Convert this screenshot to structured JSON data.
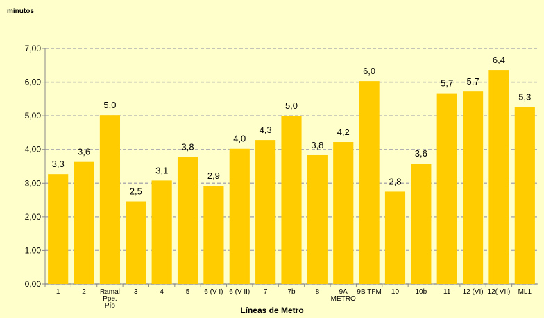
{
  "chart_data": {
    "type": "bar",
    "y_axis_label": "minutos",
    "x_axis_label": "Líneas de Metro",
    "categories": [
      "1",
      "2",
      "Ramal\nPpe.\nPío",
      "3",
      "4",
      "5",
      "6 (V I)",
      "6 (V II)",
      "7",
      "7b",
      "8",
      "9A\nMETRO",
      "9B TFM",
      "10",
      "10b",
      "11",
      "12 (VI)",
      "12( VII)",
      "ML1"
    ],
    "values": [
      3.27,
      3.63,
      5.02,
      2.46,
      3.08,
      3.78,
      2.92,
      4.02,
      4.28,
      5.0,
      3.83,
      4.22,
      6.03,
      2.75,
      3.58,
      5.67,
      5.72,
      6.36,
      5.26
    ],
    "value_labels": [
      "3,3",
      "3,6",
      "5,0",
      "2,5",
      "3,1",
      "3,8",
      "2,9",
      "4,0",
      "4,3",
      "5,0",
      "3,8",
      "4,2",
      "6,0",
      "2,8",
      "3,6",
      "5,7",
      "5,7",
      "6,4",
      "5,3"
    ],
    "color": "#ffcc00",
    "ylim": [
      0,
      7
    ],
    "yticks": [
      {
        "value": 0,
        "label": "0,00"
      },
      {
        "value": 1,
        "label": "1,00"
      },
      {
        "value": 2,
        "label": "2,00"
      },
      {
        "value": 3,
        "label": "3,00"
      },
      {
        "value": 4,
        "label": "4,00"
      },
      {
        "value": 5,
        "label": "5,00"
      },
      {
        "value": 6,
        "label": "6,00"
      },
      {
        "value": 7,
        "label": "7,00"
      }
    ],
    "grid": true
  }
}
